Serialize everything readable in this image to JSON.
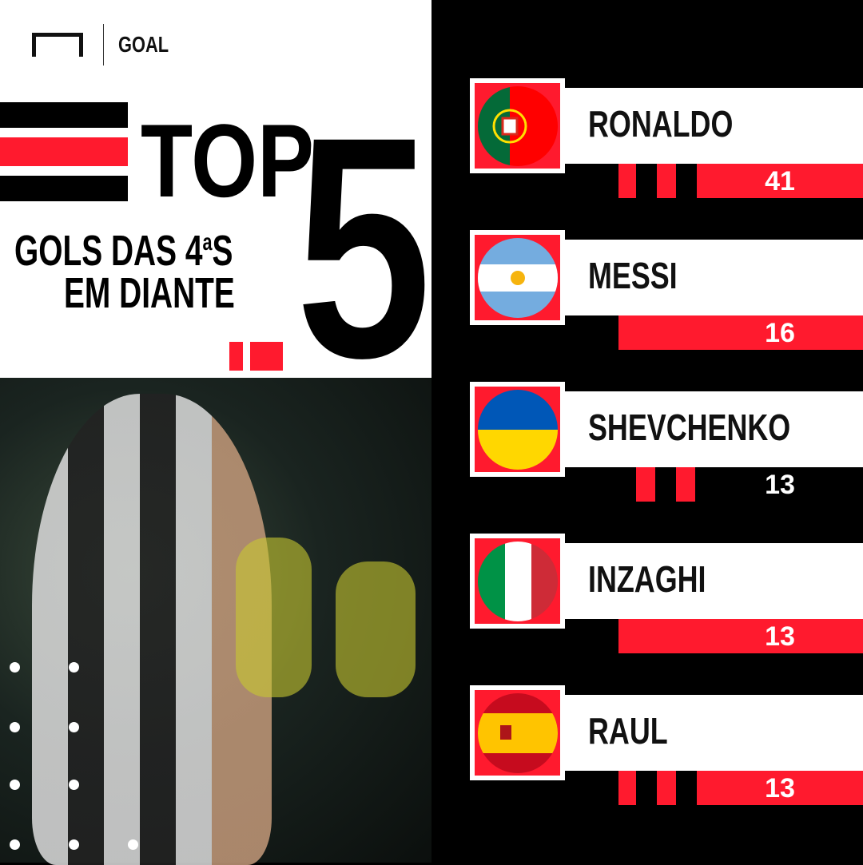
{
  "brand": {
    "name": "GOAL"
  },
  "title": {
    "top": "TOP",
    "number": "5",
    "line1": "GOLS DAS 4",
    "sup": "a",
    "line1_end": "S",
    "line2": "EM DIANTE"
  },
  "colors": {
    "red": "#ff1a2e",
    "black": "#000000",
    "white": "#ffffff"
  },
  "chart_data": {
    "type": "table",
    "categories": [
      "RONALDO",
      "MESSI",
      "SHEVCHENKO",
      "INZAGHI",
      "RAUL"
    ],
    "values": [
      41,
      16,
      13,
      13,
      13
    ],
    "flags": [
      "portugal-flag-icon",
      "argentina-flag-icon",
      "ukraine-flag-icon",
      "italy-flag-icon",
      "spain-flag-icon"
    ]
  },
  "players": [
    {
      "name": "RONALDO",
      "goals": "41",
      "flag": "portugal"
    },
    {
      "name": "MESSI",
      "goals": "16",
      "flag": "argentina"
    },
    {
      "name": "SHEVCHENKO",
      "goals": "13",
      "flag": "ukraine"
    },
    {
      "name": "INZAGHI",
      "goals": "13",
      "flag": "italy"
    },
    {
      "name": "RAUL",
      "goals": "13",
      "flag": "spain"
    }
  ]
}
